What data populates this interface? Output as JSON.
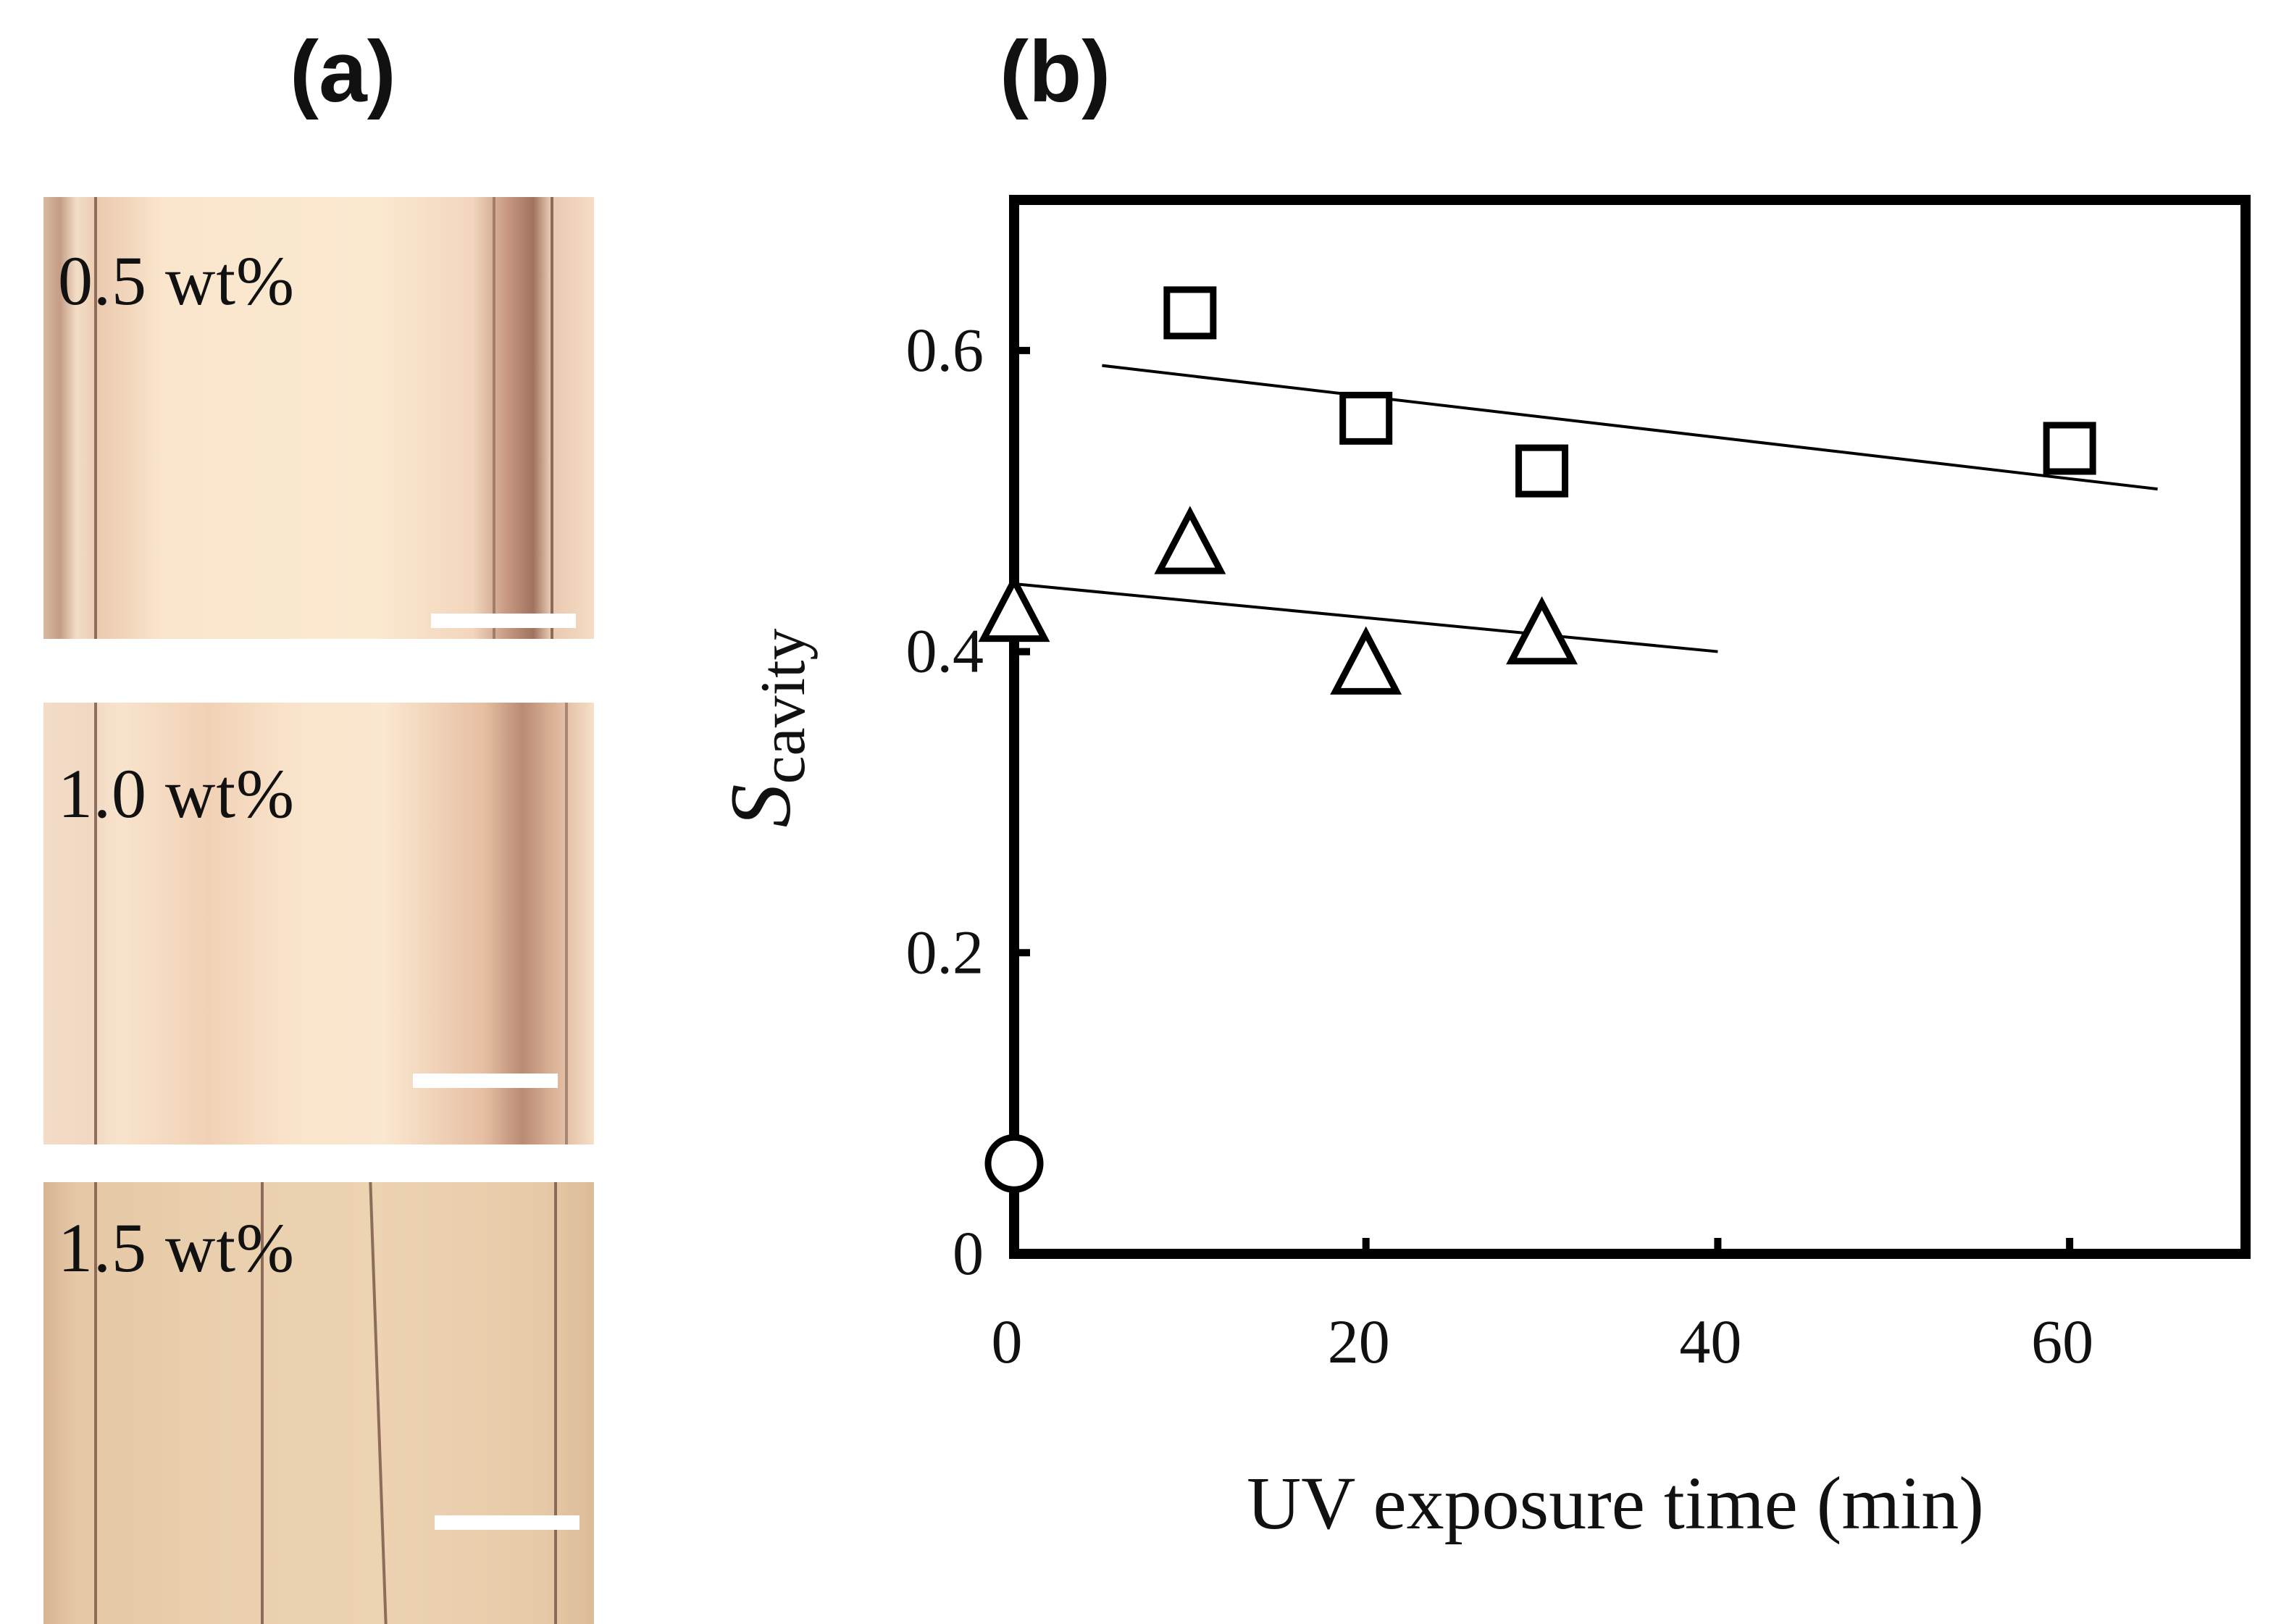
{
  "panel_labels": {
    "a": "(a)",
    "b": "(b)"
  },
  "micrographs": [
    {
      "label": "0.5 wt%"
    },
    {
      "label": "1.0 wt%"
    },
    {
      "label": "1.5 wt%"
    }
  ],
  "chart_data": {
    "type": "scatter",
    "xlabel": "UV exposure time (min)",
    "ylabel_main": "S",
    "ylabel_sub": "cavity",
    "xlim": [
      0,
      70
    ],
    "ylim": [
      0,
      0.7
    ],
    "xticks": [
      0,
      20,
      40,
      60
    ],
    "yticks": [
      0,
      0.2,
      0.4,
      0.6
    ],
    "ytick_labels": [
      "0",
      "0.2",
      "0.4",
      "0.6"
    ],
    "xtick_labels": [
      "0",
      "20",
      "40",
      "60"
    ],
    "series": [
      {
        "marker": "square",
        "points": [
          [
            10,
            0.625
          ],
          [
            20,
            0.555
          ],
          [
            30,
            0.52
          ],
          [
            60,
            0.535
          ]
        ],
        "fit": [
          [
            5,
            0.59
          ],
          [
            65,
            0.508
          ]
        ]
      },
      {
        "marker": "triangle",
        "points": [
          [
            0,
            0.425
          ],
          [
            10,
            0.47
          ],
          [
            20,
            0.39
          ],
          [
            30,
            0.41
          ]
        ],
        "fit": [
          [
            0,
            0.445
          ],
          [
            40,
            0.4
          ]
        ]
      },
      {
        "marker": "circle",
        "points": [
          [
            0,
            0.06
          ]
        ]
      }
    ]
  }
}
